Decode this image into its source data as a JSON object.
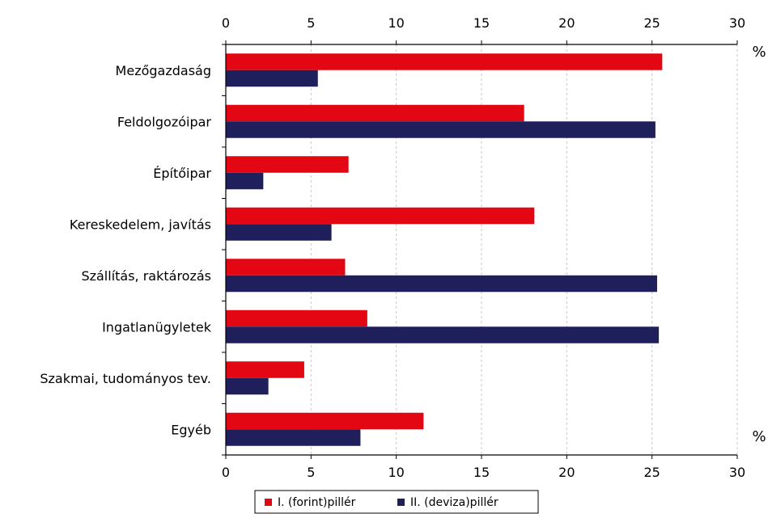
{
  "chart_data": {
    "type": "bar",
    "orientation": "horizontal",
    "categories": [
      "Mezőgazdaság",
      "Feldolgozóipar",
      "Építőipar",
      "Kereskedelem, javítás",
      "Szállítás, raktározás",
      "Ingatlanügyletek",
      "Szakmai, tudományos tev.",
      "Egyéb"
    ],
    "series": [
      {
        "name": "I. (forint)pillér",
        "color": "#e30613",
        "values": [
          25.6,
          17.5,
          7.2,
          18.1,
          7.0,
          8.3,
          4.6,
          11.6
        ]
      },
      {
        "name": "II. (deviza)pillér",
        "color": "#1f1f5c",
        "values": [
          5.4,
          25.2,
          2.2,
          6.2,
          25.3,
          25.4,
          2.5,
          7.9
        ]
      }
    ],
    "xlim": [
      0,
      30
    ],
    "xticks": [
      "0",
      "5",
      "10",
      "15",
      "20",
      "25",
      "30"
    ],
    "unit_top": "%",
    "unit_bottom": "%",
    "grid": "vertical dashed",
    "legend_position": "bottom-center"
  }
}
